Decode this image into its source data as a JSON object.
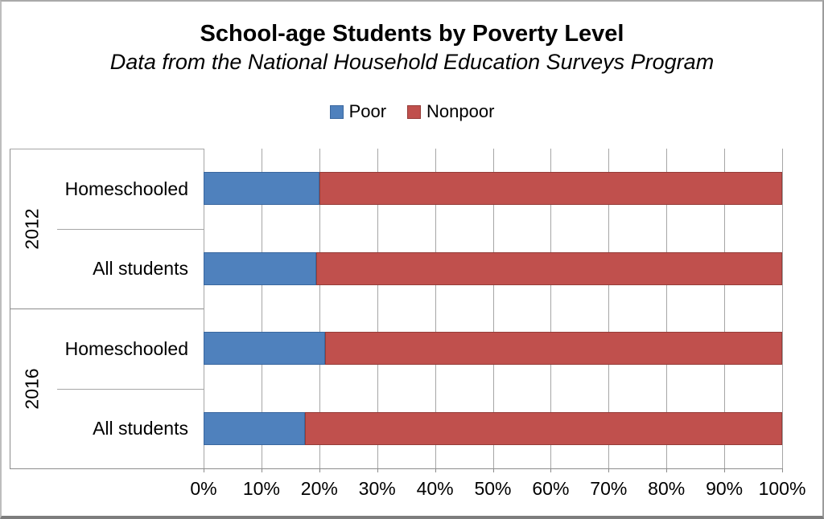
{
  "title": "School-age Students by Poverty Level",
  "subtitle": "Data from the National Household Education Surveys Program",
  "legend": [
    {
      "label": "Poor",
      "color": "#4F81BD",
      "border": "#3A679F"
    },
    {
      "label": "Nonpoor",
      "color": "#C0504D",
      "border": "#953C38"
    }
  ],
  "chart_data": {
    "type": "bar",
    "orientation": "horizontal",
    "stacked": true,
    "title": "School-age Students by Poverty Level",
    "subtitle": "Data from the National Household Education Surveys Program",
    "grid": true,
    "legend_position": "top",
    "xlim": [
      0,
      100
    ],
    "x_ticks": [
      "0%",
      "10%",
      "20%",
      "30%",
      "40%",
      "50%",
      "60%",
      "70%",
      "80%",
      "90%",
      "100%"
    ],
    "groups": [
      {
        "label": "2012",
        "categories": [
          "Homeschooled",
          "All students"
        ]
      },
      {
        "label": "2016",
        "categories": [
          "Homeschooled",
          "All students"
        ]
      }
    ],
    "series": [
      {
        "name": "Poor",
        "color": "#4F81BD",
        "border": "#3A679F",
        "values": [
          20,
          19.5,
          21,
          17.5
        ]
      },
      {
        "name": "Nonpoor",
        "color": "#C0504D",
        "border": "#953C38",
        "values": [
          80,
          80.5,
          79,
          82.5
        ]
      }
    ]
  }
}
